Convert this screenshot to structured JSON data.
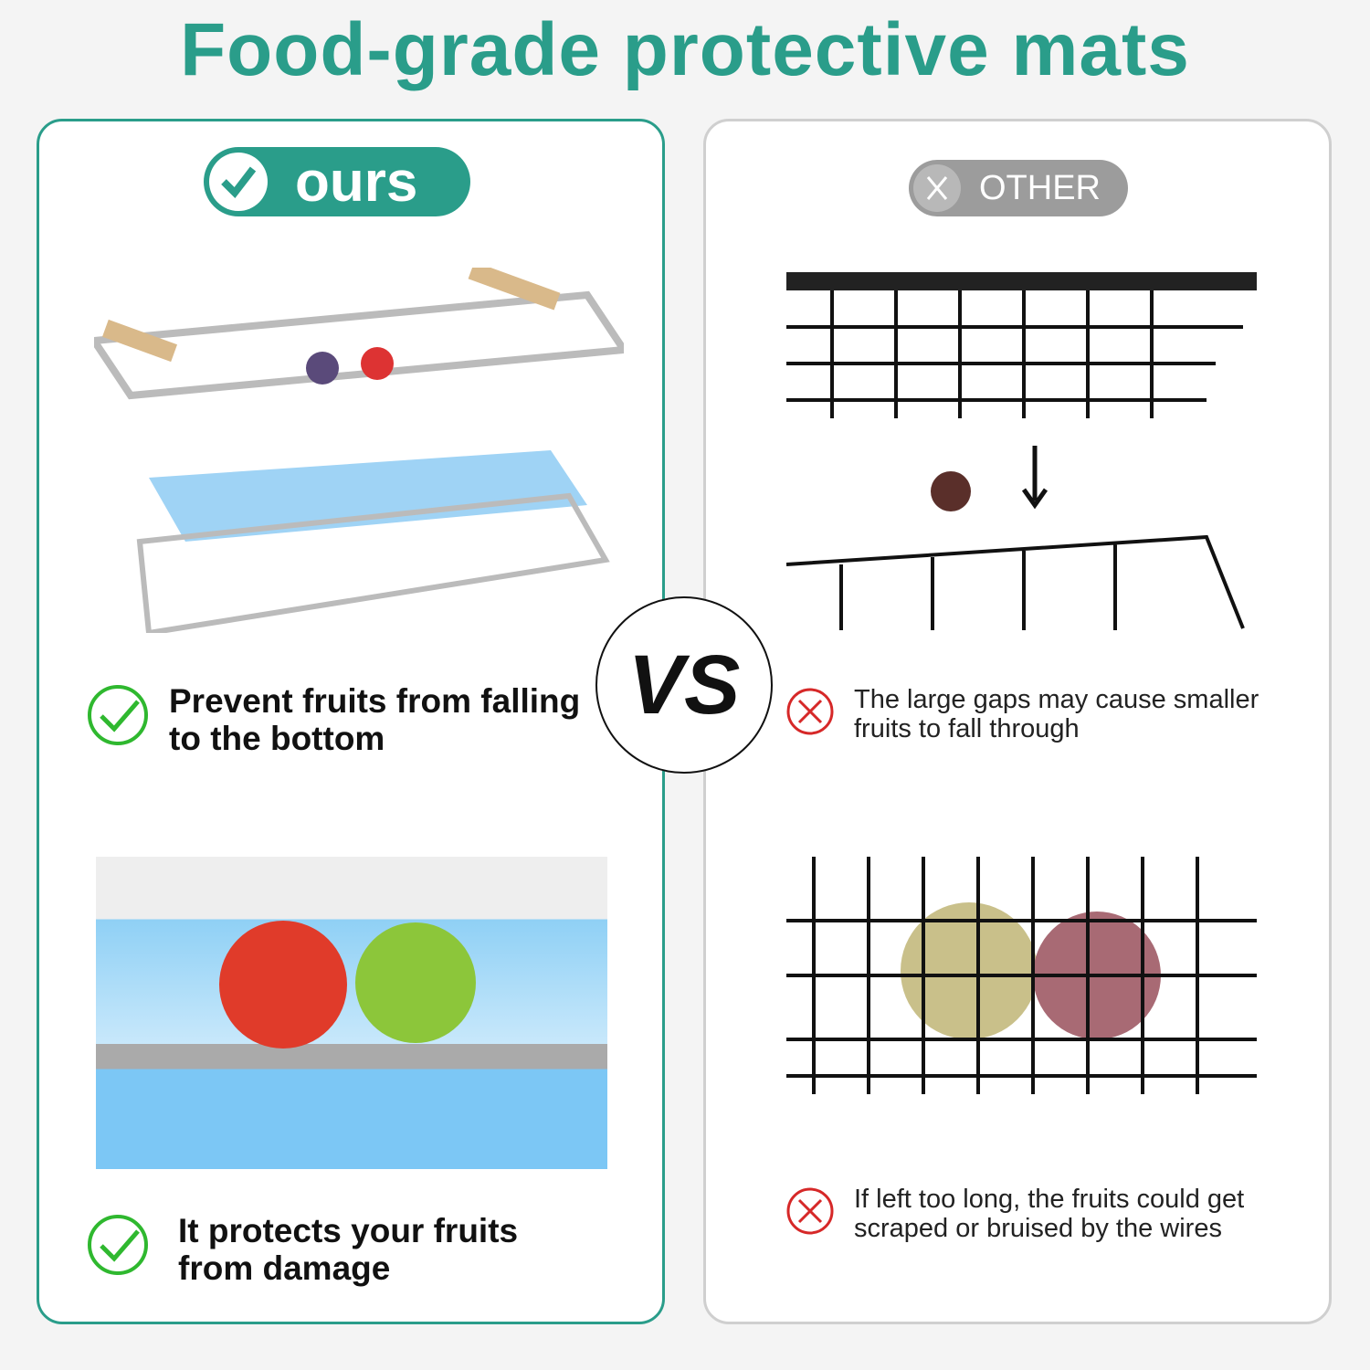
{
  "title": "Food-grade protective mats",
  "ours": {
    "badge": "ours",
    "features": [
      "Prevent fruits from falling to the bottom",
      "It protects your fruits from damage"
    ]
  },
  "other": {
    "badge": "OTHER",
    "features": [
      "The large gaps may cause smaller fruits to fall through",
      "If left too long, the fruits could get scraped or bruised by the wires"
    ]
  },
  "vs": "VS",
  "colors": {
    "accent": "#2a9d8a",
    "other": "#9c9c9c",
    "check": "#2fb82f",
    "cross": "#d62828"
  }
}
